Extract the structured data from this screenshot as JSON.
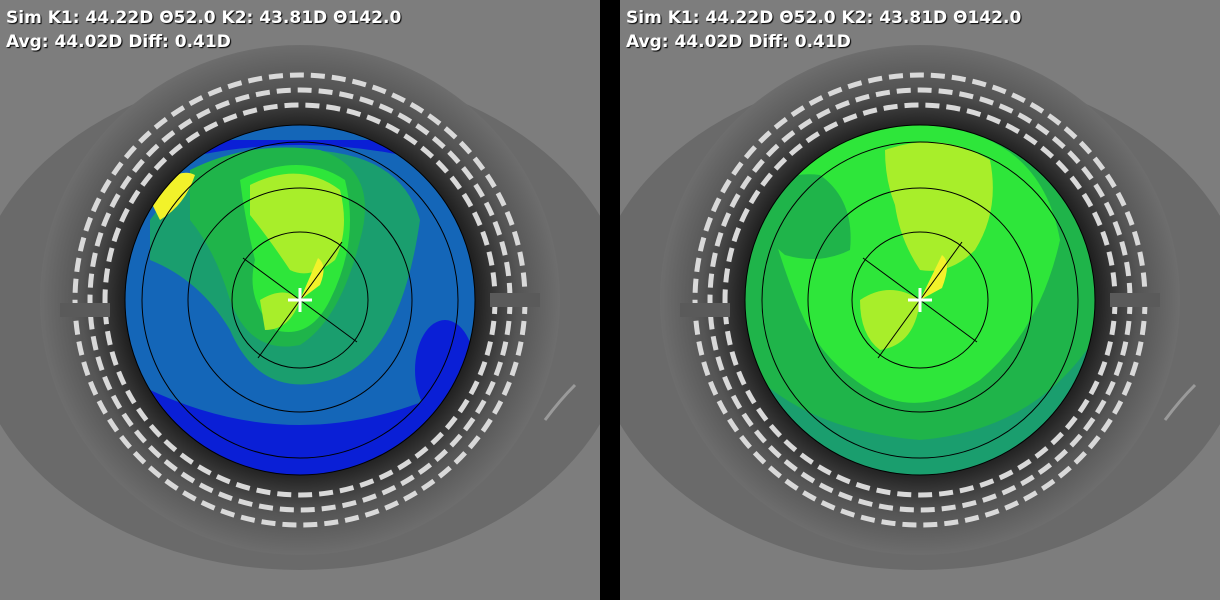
{
  "panels": [
    {
      "id": "left",
      "map_type": "axial-map",
      "readout": {
        "line1": "Sim K1: 44.22D \u000252.0 K2: 43.81D \u0002142.0",
        "line2": "Avg: 44.02D Diff: 0.41D"
      }
    },
    {
      "id": "right",
      "map_type": "tangential-map",
      "readout": {
        "line1": "Sim K1: 44.22D \u000252.0 K2: 43.81D \u0002142.0",
        "line2": "Avg: 44.02D Diff: 0.41D"
      }
    }
  ],
  "colors": {
    "deep_blue": "#0a1fd6",
    "blue": "#1466b8",
    "teal": "#1a9e6e",
    "green": "#1fb44a",
    "bright_green": "#2ee63a",
    "yellow_green": "#a8ee2a",
    "yellow": "#f2f22a",
    "ring_mire": "#d9d9d9"
  },
  "crosshair_icon": "white-plus-icon"
}
